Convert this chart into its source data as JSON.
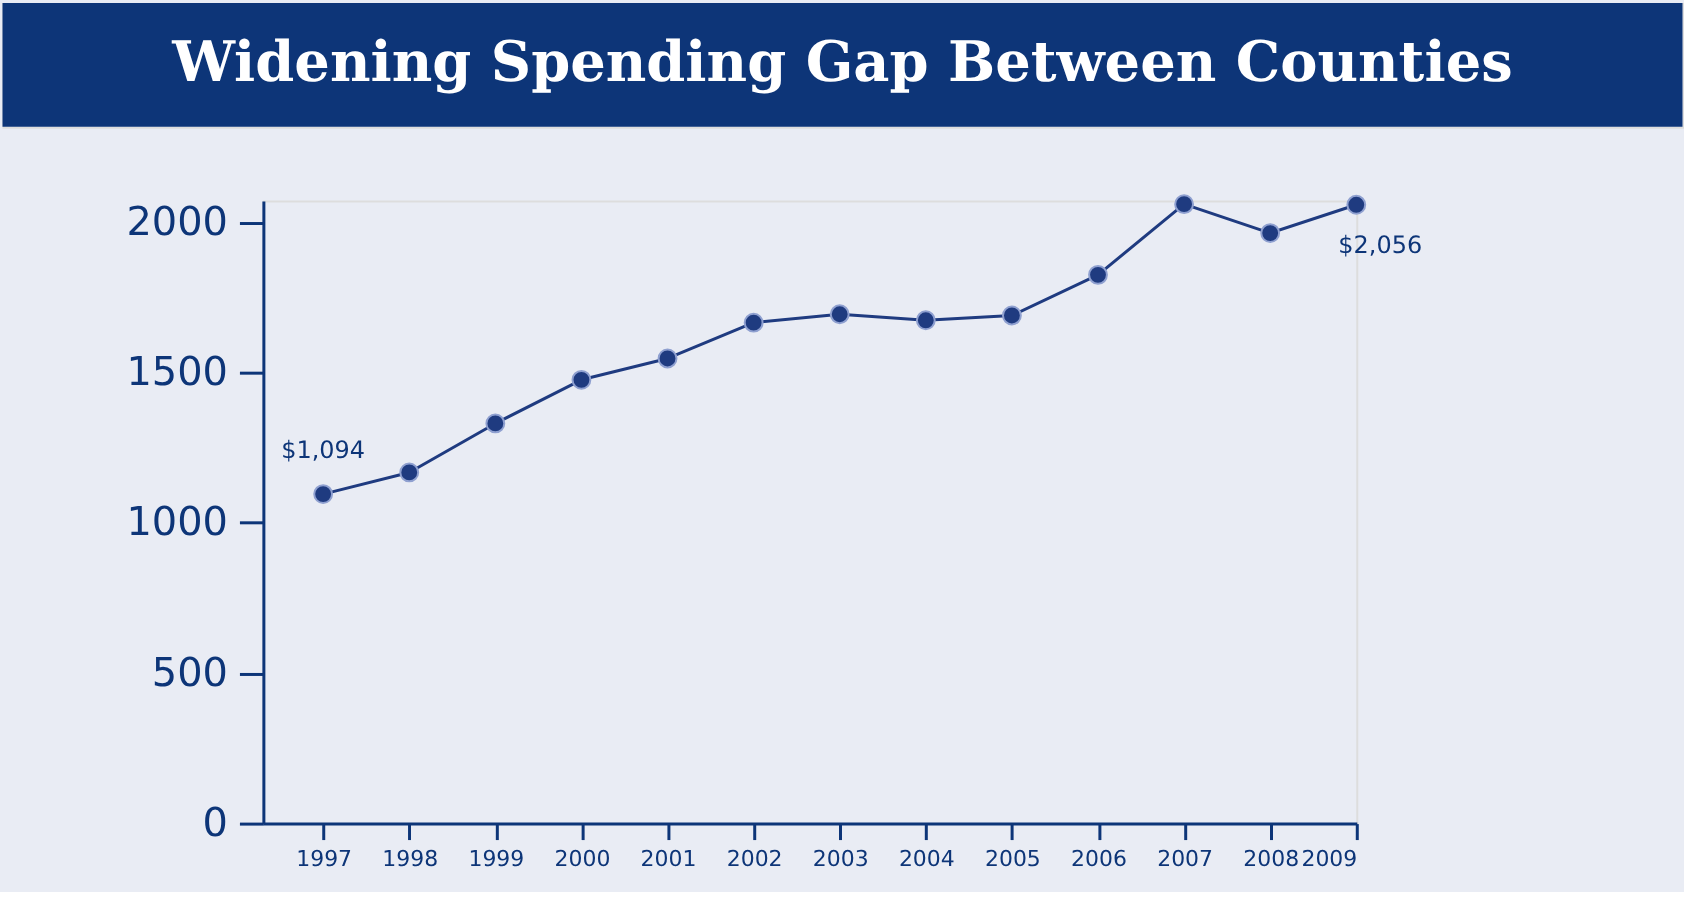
{
  "chart_data": {
    "type": "line",
    "title": "Widening Spending Gap Between Counties",
    "x": [
      1997,
      1998,
      1999,
      2000,
      2001,
      2002,
      2003,
      2004,
      2005,
      2006,
      2007,
      2008,
      2009
    ],
    "series": [
      {
        "color": "#1f3b80",
        "values": [
          1094,
          1166,
          1329,
          1474,
          1545,
          1664,
          1692,
          1672,
          1688,
          1823,
          2058,
          1962,
          2056
        ]
      }
    ],
    "xlim": [
      1996.3,
      2009
    ],
    "xticks": [
      1997,
      1998,
      1999,
      2000,
      2001,
      2002,
      2003,
      2004,
      2005,
      2006,
      2007,
      2008,
      2009
    ],
    "ylim": [
      0,
      2070
    ],
    "yticks": [
      0,
      500,
      1000,
      1500,
      2000
    ],
    "annotations": [
      {
        "text": "$1,094",
        "x": 1997,
        "y": 1094
      },
      {
        "text": "$2,056",
        "x": 2009,
        "y": 2056
      }
    ],
    "grid": false,
    "marker": "circle",
    "line_style": "solid"
  }
}
